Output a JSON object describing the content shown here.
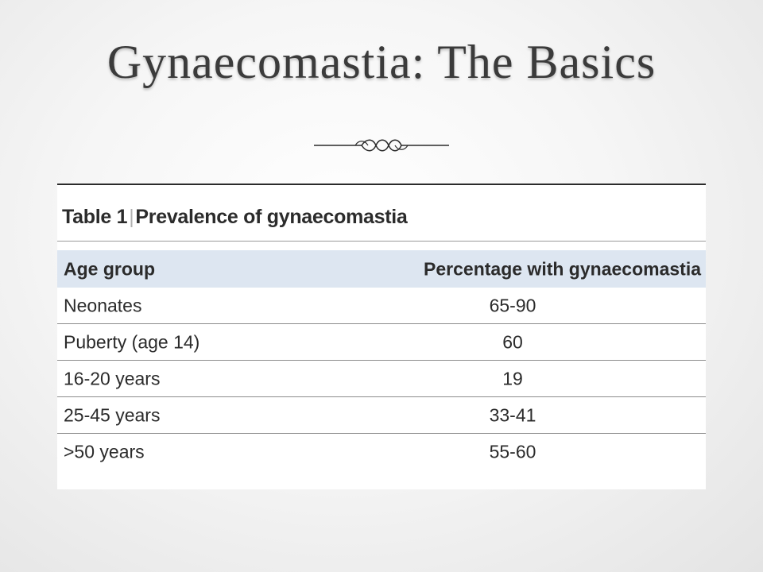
{
  "slide": {
    "title": "Gynaecomastia: The Basics"
  },
  "table": {
    "label": "Table 1",
    "separator": "|",
    "caption": "Prevalence of gynaecomastia",
    "headers": {
      "age_group": "Age group",
      "percentage": "Percentage with gynaecomastia"
    },
    "rows": [
      {
        "age": "Neonates",
        "pct": "65-90"
      },
      {
        "age": "Puberty (age 14)",
        "pct": "60"
      },
      {
        "age": "16-20 years",
        "pct": "19"
      },
      {
        "age": "25-45 years",
        "pct": "33-41"
      },
      {
        "age": ">50 years",
        "pct": "55-60"
      }
    ]
  },
  "colors": {
    "title": "#3b3b3b",
    "header_band": "#dde6f1",
    "table_text": "#2b2b2b"
  }
}
